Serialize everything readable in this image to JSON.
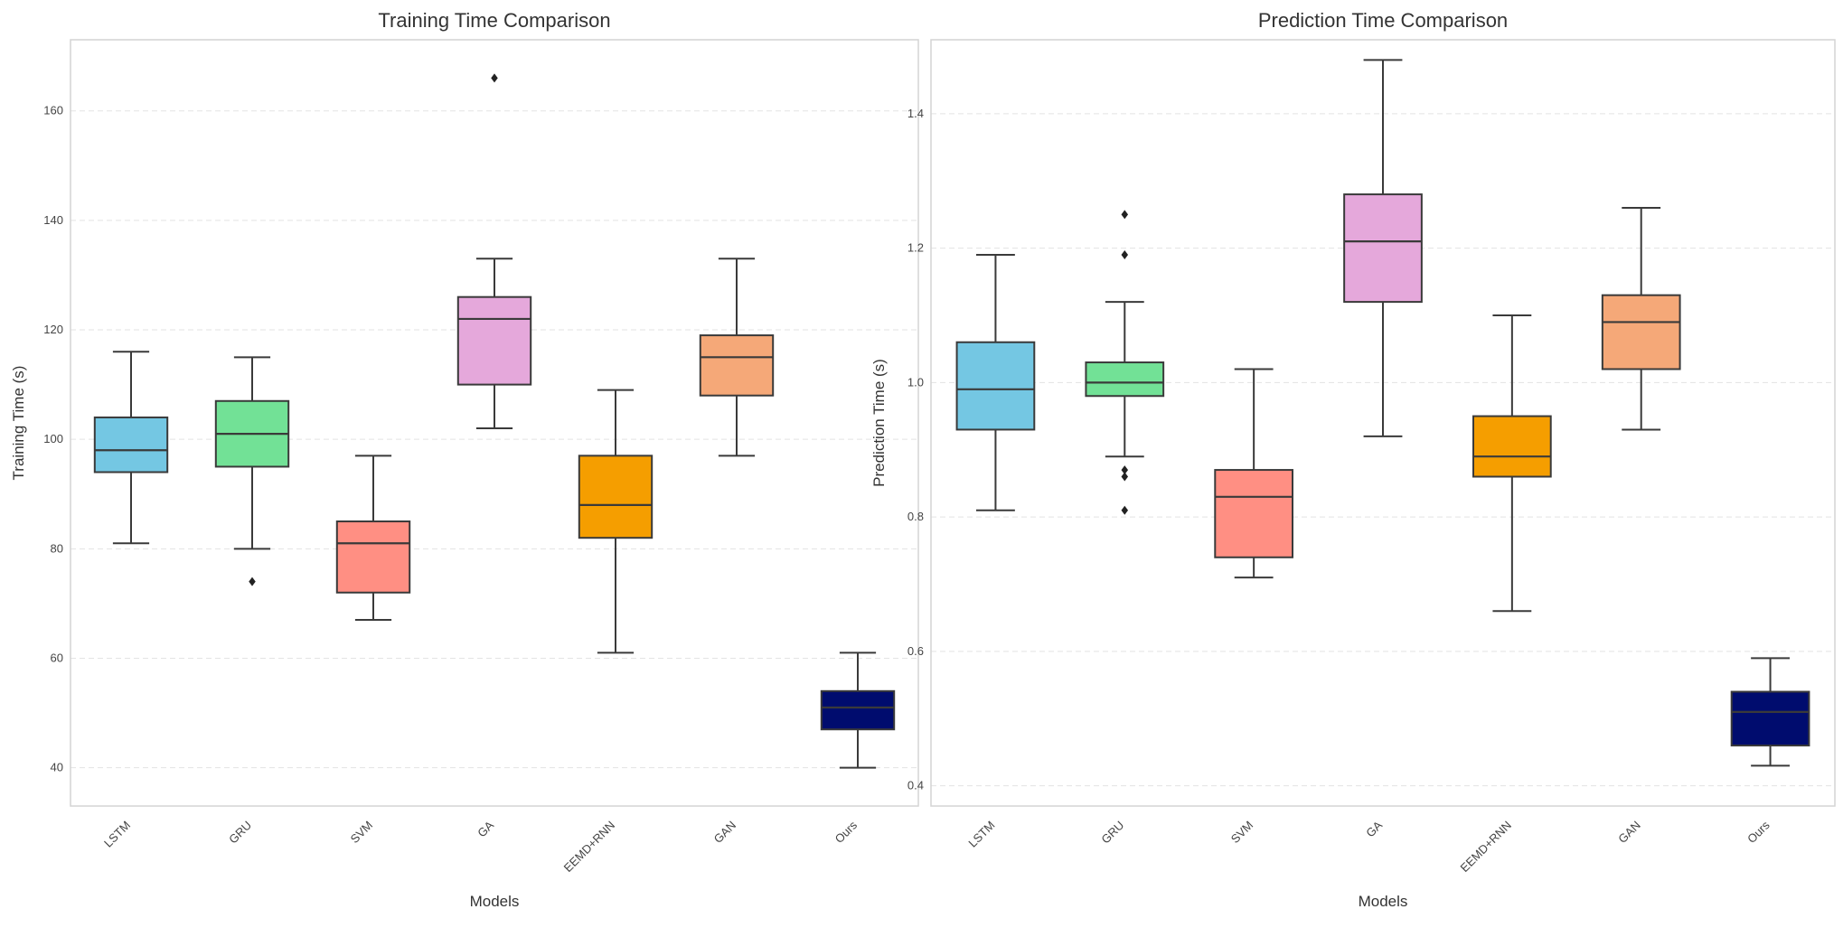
{
  "chart_data": [
    {
      "type": "box",
      "title": "Training Time Comparison",
      "xlabel": "Models",
      "ylabel": "Training Time (s)",
      "ylim": [
        33,
        173
      ],
      "yticks": [
        40,
        60,
        80,
        100,
        120,
        140,
        160
      ],
      "ytick_labels": [
        "40",
        "60",
        "80",
        "100",
        "120",
        "140",
        "160"
      ],
      "grid": true,
      "categories": [
        "LSTM",
        "GRU",
        "SVM",
        "GA",
        "EEMD+RNN",
        "GAN",
        "Ours"
      ],
      "colors": [
        "#74c7e3",
        "#72e196",
        "#ff8f83",
        "#e5a8db",
        "#f59e00",
        "#f5a878",
        "#000c6e"
      ],
      "series": [
        {
          "name": "LSTM",
          "whislo": 81,
          "q1": 94,
          "med": 98,
          "q3": 104,
          "whishi": 116,
          "fliers": []
        },
        {
          "name": "GRU",
          "whislo": 80,
          "q1": 95,
          "med": 101,
          "q3": 107,
          "whishi": 115,
          "fliers": [
            74
          ]
        },
        {
          "name": "SVM",
          "whislo": 67,
          "q1": 72,
          "med": 81,
          "q3": 85,
          "whishi": 97,
          "fliers": []
        },
        {
          "name": "GA",
          "whislo": 102,
          "q1": 110,
          "med": 122,
          "q3": 126,
          "whishi": 133,
          "fliers": [
            166
          ]
        },
        {
          "name": "EEMD+RNN",
          "whislo": 61,
          "q1": 82,
          "med": 88,
          "q3": 97,
          "whishi": 109,
          "fliers": []
        },
        {
          "name": "GAN",
          "whislo": 97,
          "q1": 108,
          "med": 115,
          "q3": 119,
          "whishi": 133,
          "fliers": []
        },
        {
          "name": "Ours",
          "whislo": 40,
          "q1": 47,
          "med": 51,
          "q3": 54,
          "whishi": 61,
          "fliers": []
        }
      ]
    },
    {
      "type": "box",
      "title": "Prediction Time Comparison",
      "xlabel": "Models",
      "ylabel": "Prediction Time (s)",
      "ylim": [
        0.37,
        1.51
      ],
      "yticks": [
        0.4,
        0.6,
        0.8,
        1.0,
        1.2,
        1.4
      ],
      "ytick_labels": [
        "0.4",
        "0.6",
        "0.8",
        "1.0",
        "1.2",
        "1.4"
      ],
      "grid": true,
      "categories": [
        "LSTM",
        "GRU",
        "SVM",
        "GA",
        "EEMD+RNN",
        "GAN",
        "Ours"
      ],
      "colors": [
        "#74c7e3",
        "#72e196",
        "#ff8f83",
        "#e5a8db",
        "#f59e00",
        "#f5a878",
        "#000c6e"
      ],
      "series": [
        {
          "name": "LSTM",
          "whislo": 0.81,
          "q1": 0.93,
          "med": 0.99,
          "q3": 1.06,
          "whishi": 1.19,
          "fliers": []
        },
        {
          "name": "GRU",
          "whislo": 0.89,
          "q1": 0.98,
          "med": 1.0,
          "q3": 1.03,
          "whishi": 1.12,
          "fliers": [
            1.25,
            1.19,
            0.87,
            0.86,
            0.81
          ]
        },
        {
          "name": "SVM",
          "whislo": 0.71,
          "q1": 0.74,
          "med": 0.83,
          "q3": 0.87,
          "whishi": 1.02,
          "fliers": []
        },
        {
          "name": "GA",
          "whislo": 0.92,
          "q1": 1.12,
          "med": 1.21,
          "q3": 1.28,
          "whishi": 1.48,
          "fliers": []
        },
        {
          "name": "EEMD+RNN",
          "whislo": 0.66,
          "q1": 0.86,
          "med": 0.89,
          "q3": 0.95,
          "whishi": 1.1,
          "fliers": []
        },
        {
          "name": "GAN",
          "whislo": 0.93,
          "q1": 1.02,
          "med": 1.09,
          "q3": 1.13,
          "whishi": 1.26,
          "fliers": []
        },
        {
          "name": "Ours",
          "whislo": 0.43,
          "q1": 0.46,
          "med": 0.51,
          "q3": 0.54,
          "whishi": 0.59,
          "fliers": []
        }
      ]
    }
  ]
}
